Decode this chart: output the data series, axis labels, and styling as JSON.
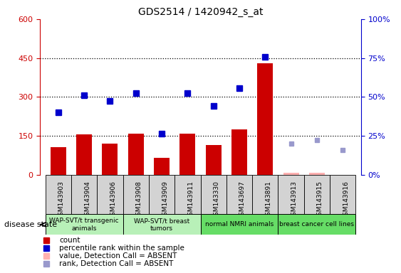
{
  "title": "GDS2514 / 1420942_s_at",
  "samples": [
    "GSM143903",
    "GSM143904",
    "GSM143906",
    "GSM143908",
    "GSM143909",
    "GSM143911",
    "GSM143330",
    "GSM143697",
    "GSM143891",
    "GSM143913",
    "GSM143915",
    "GSM143916"
  ],
  "count_values": [
    105,
    155,
    120,
    157,
    65,
    158,
    115,
    175,
    430,
    null,
    null,
    null
  ],
  "count_absent": [
    null,
    null,
    null,
    null,
    null,
    null,
    null,
    null,
    null,
    8,
    8,
    null
  ],
  "percentile_values": [
    240,
    305,
    285,
    315,
    158,
    315,
    265,
    335,
    455,
    null,
    null,
    null
  ],
  "rank_absent": [
    null,
    null,
    null,
    null,
    null,
    null,
    null,
    null,
    null,
    120,
    135,
    95
  ],
  "ylim_left": [
    0,
    600
  ],
  "yticks_left": [
    0,
    150,
    300,
    450,
    600
  ],
  "yticks_right_pct": [
    0,
    25,
    50,
    75,
    100
  ],
  "yticklabels_right": [
    "0%",
    "25%",
    "50%",
    "75%",
    "100%"
  ],
  "groups": [
    {
      "label": "WAP-SVT/t transgenic\nanimals",
      "indices": [
        0,
        1,
        2
      ],
      "color": "#b8f0b8"
    },
    {
      "label": "WAP-SVT/t breast\ntumors",
      "indices": [
        3,
        4,
        5
      ],
      "color": "#b8f0b8"
    },
    {
      "label": "normal NMRI animals",
      "indices": [
        6,
        7,
        8
      ],
      "color": "#66dd66"
    },
    {
      "label": "breast cancer cell lines",
      "indices": [
        9,
        10,
        11
      ],
      "color": "#66dd66"
    }
  ],
  "bar_color": "#cc0000",
  "bar_absent_color": "#ffb0b0",
  "dot_color": "#0000cc",
  "dot_absent_color": "#9999cc",
  "left_axis_color": "#cc0000",
  "right_axis_color": "#0000cc",
  "tick_box_color": "#d3d3d3",
  "bar_width": 0.6,
  "legend": [
    {
      "color": "#cc0000",
      "label": "count"
    },
    {
      "color": "#0000cc",
      "label": "percentile rank within the sample"
    },
    {
      "color": "#ffb0b0",
      "label": "value, Detection Call = ABSENT"
    },
    {
      "color": "#9999cc",
      "label": "rank, Detection Call = ABSENT"
    }
  ]
}
